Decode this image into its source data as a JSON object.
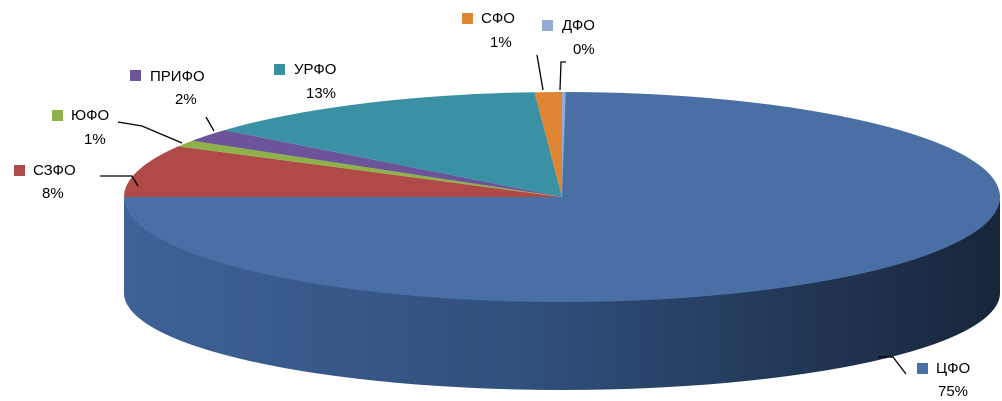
{
  "chart_data": {
    "type": "pie",
    "title": "",
    "slices": [
      {
        "label": "ЦФО",
        "value": 75,
        "value_label": "75%",
        "color": "#4A6FA5"
      },
      {
        "label": "СЗФО",
        "value": 8,
        "value_label": "8%",
        "color": "#B04A48"
      },
      {
        "label": "ЮФО",
        "value": 1,
        "value_label": "1%",
        "color": "#8DB24A"
      },
      {
        "label": "ПРИФО",
        "value": 2,
        "value_label": "2%",
        "color": "#6B5499"
      },
      {
        "label": "УРФО",
        "value": 13,
        "value_label": "13%",
        "color": "#3B91A4"
      },
      {
        "label": "СФО",
        "value": 1,
        "value_label": "1%",
        "color": "#E08533"
      },
      {
        "label": "ДФО",
        "value": 0,
        "value_label": "0%",
        "color": "#93AAD1"
      }
    ]
  }
}
